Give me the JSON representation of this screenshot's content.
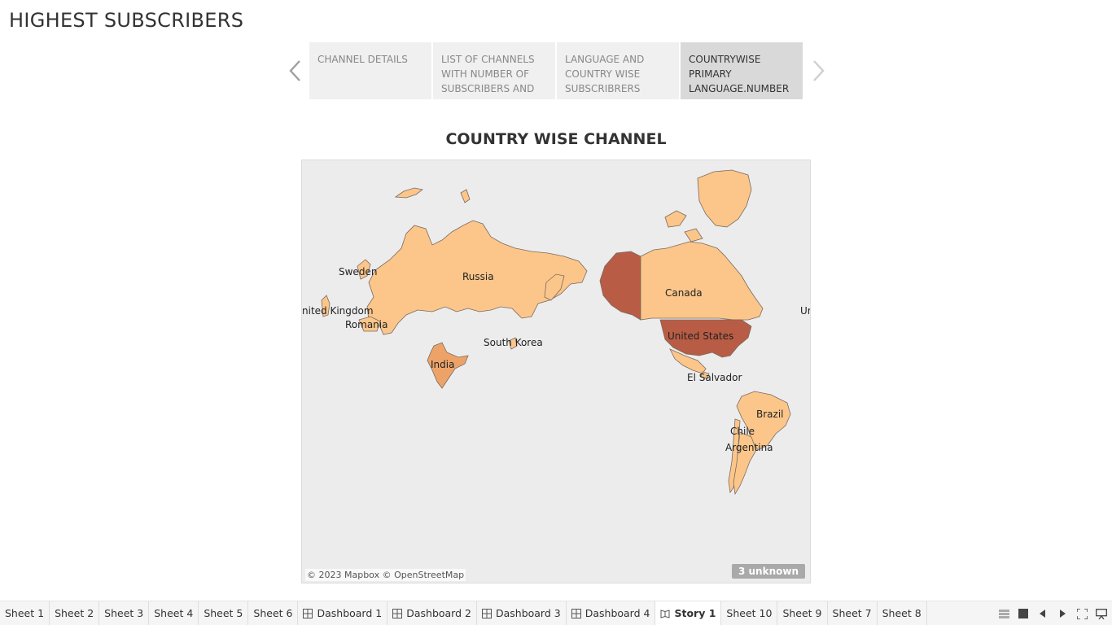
{
  "story": {
    "title": "HIGHEST SUBSCRIBERS",
    "points": [
      {
        "label": "CHANNEL DETAILS",
        "active": false
      },
      {
        "label": "LIST OF CHANNELS WITH NUMBER OF SUBSCRIBERS AND",
        "active": false
      },
      {
        "label": "LANGUAGE AND COUNTRY WISE SUBSCRIBRERS",
        "active": false
      },
      {
        "label": "COUNTRYWISE PRIMARY LANGUAGE.NUMBER",
        "active": true
      }
    ]
  },
  "map": {
    "title": "COUNTRY WISE CHANNEL",
    "labels": [
      "Sweden",
      "Russia",
      "nited Kingdom",
      "Romania",
      "South Korea",
      "India",
      "Canada",
      "United States",
      "El Salvador",
      "Brazil",
      "Chile",
      "Argentina",
      "Ur"
    ],
    "colors": {
      "light": "#fcc68a",
      "mid": "#eda368",
      "dark": "#b95c45",
      "background": "#ececec"
    },
    "attribution": "© 2023 Mapbox © OpenStreetMap",
    "unknown_badge": "3 unknown"
  },
  "tabs": [
    {
      "label": "Sheet 1",
      "icon": "none"
    },
    {
      "label": "Sheet 2",
      "icon": "none"
    },
    {
      "label": "Sheet 3",
      "icon": "none"
    },
    {
      "label": "Sheet 4",
      "icon": "none"
    },
    {
      "label": "Sheet 5",
      "icon": "none"
    },
    {
      "label": "Sheet 6",
      "icon": "none"
    },
    {
      "label": "Dashboard 1",
      "icon": "dashboard-icon"
    },
    {
      "label": "Dashboard 2",
      "icon": "dashboard-icon"
    },
    {
      "label": "Dashboard 3",
      "icon": "dashboard-icon"
    },
    {
      "label": "Dashboard 4",
      "icon": "dashboard-icon"
    },
    {
      "label": "Story 1",
      "icon": "story-icon"
    },
    {
      "label": "Sheet 10",
      "icon": "none"
    },
    {
      "label": "Sheet 9",
      "icon": "none"
    },
    {
      "label": "Sheet 7",
      "icon": "none"
    },
    {
      "label": "Sheet 8",
      "icon": "none"
    }
  ],
  "tools": [
    "filmstrip-icon",
    "tab-view-icon",
    "previous-sheet-icon",
    "next-sheet-icon",
    "fullscreen-icon",
    "presentation-icon"
  ]
}
